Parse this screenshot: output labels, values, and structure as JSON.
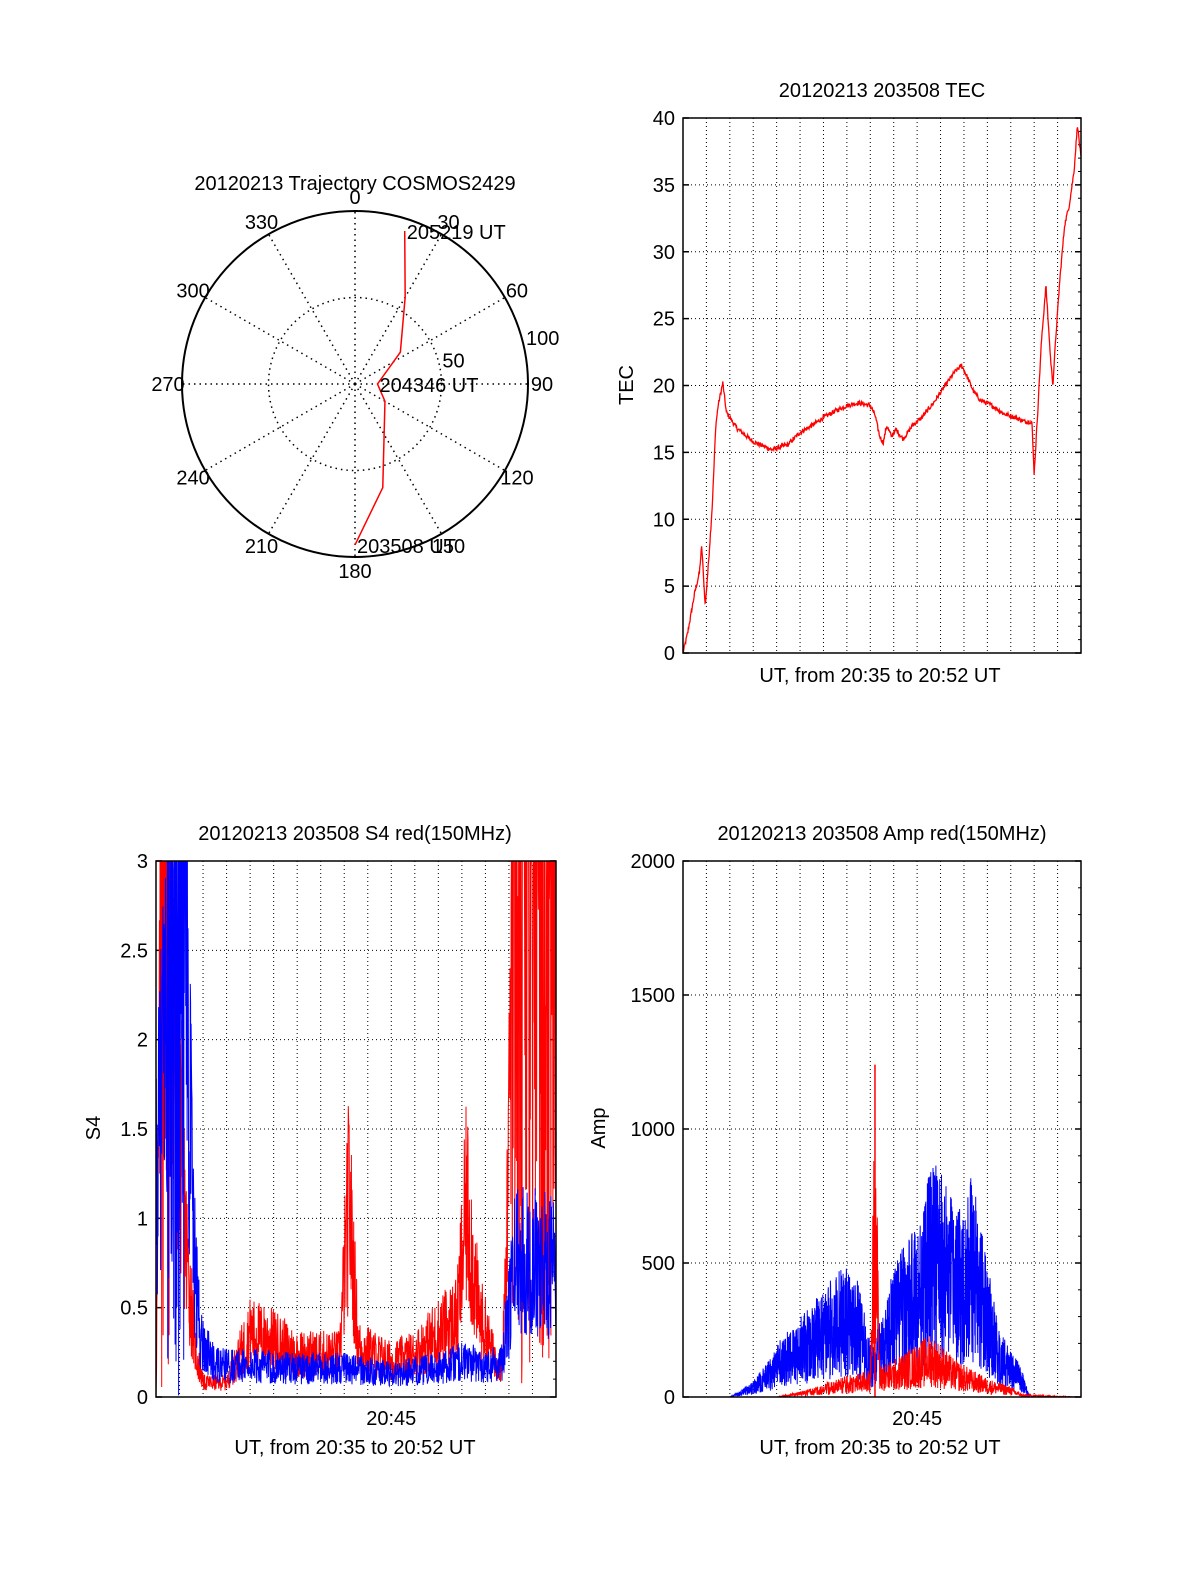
{
  "chart_data": [
    {
      "type": "polar",
      "title": "20120213 Trajectory COSMOS2429",
      "angle_ticks": [
        "0",
        "30",
        "60",
        "90",
        "120",
        "150",
        "180",
        "210",
        "240",
        "270",
        "300",
        "330"
      ],
      "radial_ticks": [
        "50",
        "100"
      ],
      "trajectory": {
        "color": "#ff0000",
        "points": [
          {
            "az": 180,
            "r": 93
          },
          {
            "az": 165,
            "r": 62
          },
          {
            "az": 120,
            "r": 20
          },
          {
            "az": 90,
            "r": 13
          },
          {
            "az": 55,
            "r": 32
          },
          {
            "az": 30,
            "r": 58
          },
          {
            "az": 18,
            "r": 93
          }
        ]
      },
      "annotations": [
        {
          "text": "205219 UT",
          "az": 18,
          "r": 93
        },
        {
          "text": "204346 UT",
          "az": 90,
          "r": 13
        },
        {
          "text": "203508 UT",
          "az": 180,
          "r": 93
        }
      ]
    },
    {
      "type": "line",
      "title": "20120213 203508 TEC",
      "xlabel": "UT, from 20:35 to 20:52 UT",
      "ylabel": "TEC",
      "ylim": [
        0,
        40
      ],
      "yticks": [
        "0",
        "5",
        "10",
        "15",
        "20",
        "25",
        "30",
        "35",
        "40"
      ],
      "xlim": [
        0,
        17
      ],
      "grid": true,
      "series": [
        {
          "color": "#ff0000",
          "points": [
            [
              0,
              0
            ],
            [
              0.2,
              1.5
            ],
            [
              0.5,
              4.5
            ],
            [
              0.7,
              6
            ],
            [
              0.8,
              8
            ],
            [
              0.95,
              3.5
            ],
            [
              1.1,
              7
            ],
            [
              1.25,
              11
            ],
            [
              1.4,
              17
            ],
            [
              1.5,
              18.5
            ],
            [
              1.7,
              20.2
            ],
            [
              1.85,
              18
            ],
            [
              2.3,
              16.8
            ],
            [
              3,
              15.8
            ],
            [
              3.8,
              15.2
            ],
            [
              4.5,
              15.6
            ],
            [
              5,
              16.5
            ],
            [
              5.5,
              17
            ],
            [
              6,
              17.6
            ],
            [
              6.5,
              18.1
            ],
            [
              7,
              18.5
            ],
            [
              7.5,
              18.7
            ],
            [
              8,
              18.5
            ],
            [
              8.2,
              17.8
            ],
            [
              8.4,
              16.2
            ],
            [
              8.55,
              15.7
            ],
            [
              8.7,
              17
            ],
            [
              8.9,
              16.2
            ],
            [
              9.1,
              16.7
            ],
            [
              9.4,
              16
            ],
            [
              9.8,
              17
            ],
            [
              10.2,
              17.6
            ],
            [
              10.7,
              18.7
            ],
            [
              11.2,
              20
            ],
            [
              11.6,
              21
            ],
            [
              11.9,
              21.5
            ],
            [
              12.1,
              20.8
            ],
            [
              12.4,
              19.6
            ],
            [
              12.7,
              18.9
            ],
            [
              13.2,
              18.5
            ],
            [
              13.7,
              17.9
            ],
            [
              14.2,
              17.6
            ],
            [
              14.6,
              17.3
            ],
            [
              14.9,
              17.3
            ],
            [
              15,
              13.4
            ],
            [
              15.15,
              18
            ],
            [
              15.3,
              23
            ],
            [
              15.5,
              27.5
            ],
            [
              15.7,
              22
            ],
            [
              15.8,
              20
            ],
            [
              15.9,
              23
            ],
            [
              16.1,
              28
            ],
            [
              16.3,
              32
            ],
            [
              16.5,
              33.5
            ],
            [
              16.7,
              36
            ],
            [
              16.85,
              39.5
            ],
            [
              17,
              37
            ]
          ]
        }
      ]
    },
    {
      "type": "line",
      "title": "20120213 203508 S4 red(150MHz)",
      "xlabel": "UT, from 20:35 to 20:52 UT",
      "ylabel": "S4",
      "ylim": [
        0,
        3
      ],
      "yticks": [
        "0",
        "0.5",
        "1",
        "1.5",
        "2",
        "2.5",
        "3"
      ],
      "xlim": [
        0,
        17
      ],
      "xtick_labels": [
        {
          "x": 10,
          "label": "20:45"
        }
      ],
      "grid": true,
      "series": [
        {
          "color": "#ff0000",
          "envelope": [
            [
              0,
              0
            ],
            [
              0.2,
              3
            ],
            [
              0.7,
              3
            ],
            [
              1.3,
              1
            ],
            [
              1.7,
              0.3
            ],
            [
              2,
              0.1
            ],
            [
              3,
              0.1
            ],
            [
              4,
              0.45
            ],
            [
              5,
              0.4
            ],
            [
              6,
              0.3
            ],
            [
              7,
              0.3
            ],
            [
              7.8,
              0.3
            ],
            [
              8.2,
              1.4
            ],
            [
              8.6,
              0.35
            ],
            [
              10,
              0.25
            ],
            [
              11,
              0.3
            ],
            [
              12,
              0.45
            ],
            [
              12.8,
              0.55
            ],
            [
              13.2,
              1.35
            ],
            [
              13.7,
              0.6
            ],
            [
              14.3,
              0.3
            ],
            [
              14.7,
              0.2
            ],
            [
              14.9,
              0.9
            ],
            [
              15.1,
              3
            ],
            [
              16.5,
              3
            ],
            [
              17,
              3
            ]
          ]
        },
        {
          "color": "#0000ff",
          "envelope": [
            [
              0,
              1.4
            ],
            [
              0.5,
              3
            ],
            [
              1.3,
              3
            ],
            [
              1.6,
              1
            ],
            [
              1.9,
              0.4
            ],
            [
              2.5,
              0.22
            ],
            [
              4,
              0.22
            ],
            [
              6,
              0.2
            ],
            [
              8,
              0.2
            ],
            [
              10,
              0.16
            ],
            [
              12,
              0.2
            ],
            [
              13,
              0.25
            ],
            [
              14,
              0.22
            ],
            [
              14.7,
              0.25
            ],
            [
              15,
              0.6
            ],
            [
              15.3,
              1
            ],
            [
              16,
              0.95
            ],
            [
              17,
              0.9
            ]
          ]
        }
      ]
    },
    {
      "type": "line",
      "title": "20120213 203508 Amp red(150MHz)",
      "xlabel": "UT, from 20:35 to 20:52 UT",
      "ylabel": "Amp",
      "ylim": [
        0,
        2000
      ],
      "yticks": [
        "0",
        "500",
        "1000",
        "1500",
        "2000"
      ],
      "xlim": [
        0,
        17
      ],
      "xtick_labels": [
        {
          "x": 10,
          "label": "20:45"
        }
      ],
      "grid": true,
      "series": [
        {
          "color": "#0000ff",
          "envelope": [
            [
              0,
              0
            ],
            [
              2,
              0
            ],
            [
              2.4,
              20
            ],
            [
              3,
              60
            ],
            [
              3.6,
              130
            ],
            [
              4.2,
              220
            ],
            [
              5,
              300
            ],
            [
              6,
              400
            ],
            [
              6.8,
              500
            ],
            [
              7.5,
              430
            ],
            [
              8,
              200
            ],
            [
              8.5,
              300
            ],
            [
              9,
              500
            ],
            [
              10,
              650
            ],
            [
              10.7,
              900
            ],
            [
              11.2,
              800
            ],
            [
              11.8,
              700
            ],
            [
              12.3,
              850
            ],
            [
              12.7,
              650
            ],
            [
              13.5,
              250
            ],
            [
              14.2,
              150
            ],
            [
              14.5,
              100
            ],
            [
              14.8,
              0
            ],
            [
              17,
              0
            ]
          ]
        },
        {
          "color": "#ff0000",
          "envelope": [
            [
              0,
              0
            ],
            [
              4,
              0
            ],
            [
              5,
              20
            ],
            [
              6,
              50
            ],
            [
              7,
              80
            ],
            [
              8,
              100
            ],
            [
              8.2,
              1240
            ],
            [
              8.4,
              120
            ],
            [
              9,
              140
            ],
            [
              10,
              200
            ],
            [
              10.6,
              240
            ],
            [
              11,
              200
            ],
            [
              11.5,
              150
            ],
            [
              12,
              120
            ],
            [
              13,
              70
            ],
            [
              14,
              40
            ],
            [
              14.5,
              10
            ],
            [
              17,
              0
            ]
          ]
        }
      ]
    }
  ]
}
